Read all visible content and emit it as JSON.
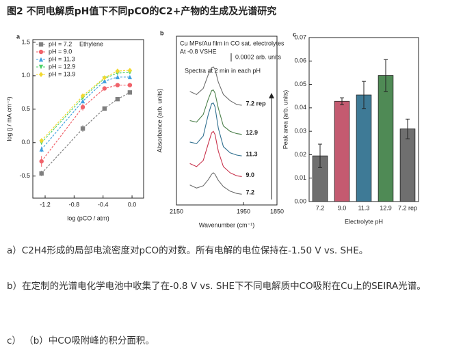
{
  "header": {
    "title": "图2 不同电解质pH值下不同pCO的C2+产物的生成及光谱研究"
  },
  "chart_data": [
    {
      "type": "line",
      "label": "a",
      "annotation": "Ethylene",
      "legend": "upper left",
      "xlabel": "log (pCO / atm)",
      "ylabel": "log (j / mA cm⁻²)",
      "x": [
        -1.25,
        -0.68,
        -0.38,
        -0.2,
        -0.03
      ],
      "series": [
        {
          "name": "pH = 7.2",
          "color": "#7f7f7f",
          "marker": "square",
          "values": [
            -0.46,
            0.21,
            0.51,
            0.65,
            0.75
          ],
          "errors": [
            0.04,
            0.05,
            0.02,
            0.02,
            0.02
          ]
        },
        {
          "name": "pH = 9.0",
          "color": "#f0626a",
          "marker": "circle",
          "values": [
            -0.28,
            0.53,
            0.81,
            0.86,
            0.86
          ],
          "errors": [
            0.08,
            0.05,
            0.02,
            0.02,
            0.02
          ]
        },
        {
          "name": "pH = 11.3",
          "color": "#3f9fe0",
          "marker": "triangle",
          "values": [
            -0.1,
            0.62,
            0.92,
            0.98,
            0.98
          ],
          "errors": [
            0.04,
            0.03,
            0.02,
            0.02,
            0.02
          ]
        },
        {
          "name": "pH = 12.9",
          "color": "#4fd26a",
          "marker": "triangle-down",
          "values": [
            0.0,
            0.67,
            0.96,
            1.04,
            1.05
          ],
          "errors": [
            0.03,
            0.03,
            0.02,
            0.02,
            0.02
          ]
        },
        {
          "name": "pH = 13.9",
          "color": "#f2d82e",
          "marker": "diamond",
          "values": [
            0.03,
            0.7,
            0.97,
            1.07,
            1.08
          ],
          "errors": [
            0.03,
            0.03,
            0.02,
            0.02,
            0.02
          ]
        }
      ],
      "xlim": [
        -1.37,
        0.16
      ],
      "xticks": [
        -1.2,
        -0.8,
        -0.4,
        {
          "value": 0,
          "label": "0.0"
        }
      ],
      "ylim": [
        -0.83,
        1.54
      ],
      "yticks": [
        -0.5,
        {
          "value": 0,
          "label": "0.0"
        },
        0.5,
        {
          "value": 1,
          "label": "1.0"
        },
        1.5
      ]
    },
    {
      "type": "line",
      "label": "b",
      "series_labels": "end",
      "annotations": [
        "Cu MPs/Au film in CO sat. electrolytes",
        "At -0.8 VSHE",
        "0.0002 arb. units",
        "Spectra at 2 min in each pH"
      ],
      "xlabel": "Wavenumber (cm⁻¹)",
      "ylabel": "Absorbance (arb. units)",
      "x": [
        2110,
        2090,
        2070,
        2055,
        2045,
        2040,
        2035,
        2025,
        2010,
        1990,
        1970,
        1955
      ],
      "series": [
        {
          "name": "7.2",
          "color": "#6d6d6d",
          "values": [
            2.6,
            2.2,
            2.5,
            3.3,
            4.0,
            4.2,
            4.0,
            3.2,
            2.4,
            1.8,
            1.5,
            1.4
          ]
        },
        {
          "name": "9.0",
          "color": "#c8304a",
          "values": [
            5.4,
            5.0,
            5.8,
            8.0,
            9.4,
            9.6,
            9.2,
            7.0,
            5.0,
            4.2,
            3.8,
            3.7
          ]
        },
        {
          "name": "11.3",
          "color": "#2f6f8f",
          "values": [
            8.2,
            8.0,
            9.0,
            11.8,
            13.2,
            13.3,
            12.8,
            10.0,
            7.6,
            6.8,
            6.5,
            6.4
          ]
        },
        {
          "name": "12.9",
          "color": "#4b7f4a",
          "values": [
            11.0,
            10.8,
            11.8,
            13.8,
            14.9,
            15.0,
            14.6,
            12.6,
            10.3,
            9.6,
            9.3,
            9.2
          ]
        },
        {
          "name": "7.2 rep",
          "color": "#6d6d6d",
          "values": [
            14.8,
            14.4,
            15.2,
            17.0,
            17.9,
            18.0,
            17.7,
            16.0,
            14.4,
            13.6,
            13.1,
            13.0
          ]
        }
      ],
      "xlim": [
        2150,
        1850
      ],
      "xticks": [
        2150,
        1950,
        1850
      ],
      "ylim": [
        0,
        22
      ]
    },
    {
      "type": "bar",
      "label": "c",
      "xlabel": "Electrolyte pH",
      "ylabel": "Peak area (arb. units)",
      "categories": [
        "7.2",
        "9.0",
        "11.3",
        "12.9",
        "7.2 rep"
      ],
      "values": [
        0.0195,
        0.0428,
        0.0455,
        0.0538,
        0.031
      ],
      "errors": [
        0.005,
        0.0015,
        0.0058,
        0.0068,
        0.0042
      ],
      "colors": [
        "#6f6f6f",
        "#c45a70",
        "#3e7a96",
        "#4f8a55",
        "#6f6f6f"
      ],
      "ylim": [
        0,
        0.07
      ],
      "yticks": [
        {
          "value": 0,
          "label": "0.00"
        },
        0.01,
        0.02,
        0.03,
        0.04,
        0.05,
        0.06,
        0.07
      ]
    }
  ],
  "captions": [
    "a）C2H4形成的局部电流密度对pCO的对数。所有电解的电位保持在-1.50 V vs. SHE。",
    "b）在定制的光谱电化学电池中收集了在-0.8 V vs. SHE下不同电解质中CO吸附在Cu上的SEIRA光谱。",
    "c） （b）中CO吸附峰的积分面积。"
  ]
}
